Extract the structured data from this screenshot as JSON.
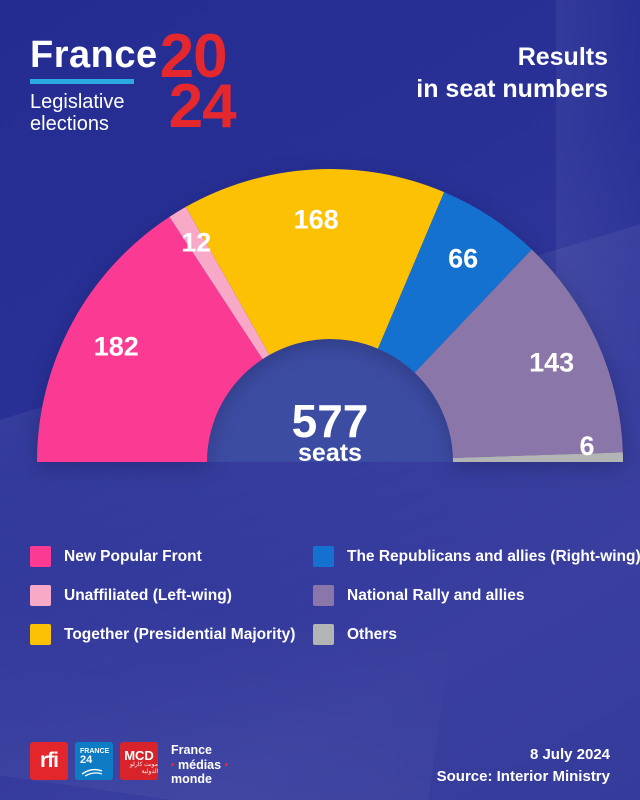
{
  "header": {
    "logo": {
      "brand": "France",
      "year_top": "20",
      "year_bottom": "24",
      "subtitle_line1": "Legislative",
      "subtitle_line2": "elections",
      "accent_cyan": "#2BA9E1",
      "accent_red": "#E5272E"
    },
    "title_line1": "Results",
    "title_line2": "in seat numbers"
  },
  "chart_data": {
    "type": "pie",
    "variant": "half-donut",
    "title": "Results in seat numbers",
    "total": 577,
    "total_label": "577",
    "total_unit": "seats",
    "legend_position": "bottom",
    "series": [
      {
        "name": "New Popular Front",
        "value": 182,
        "color": "#FB3A93"
      },
      {
        "name": "Unaffiliated (Left-wing)",
        "value": 12,
        "color": "#F8A9C7"
      },
      {
        "name": "Together (Presidential Majority)",
        "value": 168,
        "color": "#FCC102"
      },
      {
        "name": "The Republicans and allies (Right-wing)",
        "value": 66,
        "color": "#1571D0"
      },
      {
        "name": "National Rally and allies",
        "value": 143,
        "color": "#8B76AA"
      },
      {
        "name": "Others",
        "value": 6,
        "color": "#B3B4B4"
      }
    ]
  },
  "footer": {
    "logos": {
      "rfi": "rfi",
      "france24_line1": "FRANCE",
      "france24_line2": "24",
      "mcd": "MCD",
      "mcd_arabic": "مونت كارلو الدولية",
      "fmm_line1": "France",
      "fmm_line2": "médias",
      "fmm_line3": "monde"
    },
    "date": "8 July 2024",
    "source": "Source: Interior Ministry"
  }
}
